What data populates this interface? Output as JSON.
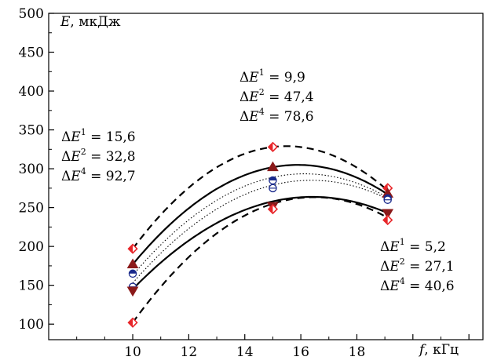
{
  "chart_data": {
    "type": "scatter",
    "title": "",
    "xlabel": {
      "var": "f",
      "unit": ", кГц"
    },
    "ylabel": {
      "var": "E",
      "unit": ", мкДж"
    },
    "xlim": [
      7,
      22.5
    ],
    "ylim": [
      80,
      500
    ],
    "x_ticks": [
      "10",
      "12",
      "14",
      "16",
      "18"
    ],
    "y_ticks": [
      "100",
      "150",
      "200",
      "250",
      "300",
      "350",
      "400",
      "450",
      "500"
    ],
    "grid": false,
    "x": [
      10,
      15,
      19.1
    ],
    "series": [
      {
        "marker": "diamond",
        "color": "#e8262a",
        "values": [
          197,
          328,
          275
        ]
      },
      {
        "marker": "triangle-up",
        "color": "#8b1a1a",
        "values": [
          177,
          302,
          268
        ]
      },
      {
        "marker": "circle-half",
        "color": "#1a2a8c",
        "values": [
          165,
          285,
          262
        ]
      },
      {
        "marker": "circle-open",
        "color": "#1a2a8c",
        "values": [
          148,
          275,
          260
        ]
      },
      {
        "marker": "triangle-down",
        "color": "#8b1a1a",
        "values": [
          143,
          252,
          243
        ]
      },
      {
        "marker": "diamond",
        "color": "#e8262a",
        "values": [
          102,
          248,
          234
        ]
      }
    ],
    "curves": [
      {
        "style": "dashed",
        "values": [
          197,
          328,
          272
        ]
      },
      {
        "style": "solid",
        "values": [
          177,
          302,
          267
        ]
      },
      {
        "style": "dotted",
        "values": [
          163,
          289,
          263
        ]
      },
      {
        "style": "dotted",
        "values": [
          153,
          279,
          261
        ]
      },
      {
        "style": "solid",
        "values": [
          145,
          258,
          243
        ]
      },
      {
        "style": "dashed",
        "values": [
          102,
          255,
          237
        ]
      }
    ],
    "annotations": [
      {
        "at": "upper-left",
        "lines": [
          {
            "sup": "1",
            "value": " = 15,6"
          },
          {
            "sup": "2",
            "value": " = 32,8"
          },
          {
            "sup": "4",
            "value": " = 92,7"
          }
        ]
      },
      {
        "at": "top-center",
        "lines": [
          {
            "sup": "1",
            "value": " = 9,9"
          },
          {
            "sup": "2",
            "value": " = 47,4"
          },
          {
            "sup": "4",
            "value": " = 78,6"
          }
        ]
      },
      {
        "at": "lower-right",
        "lines": [
          {
            "sup": "1",
            "value": " = 5,2"
          },
          {
            "sup": "2",
            "value": " = 27,1"
          },
          {
            "sup": "4",
            "value": " = 40,6"
          }
        ]
      }
    ],
    "annotation_symbol": "ΔE"
  }
}
